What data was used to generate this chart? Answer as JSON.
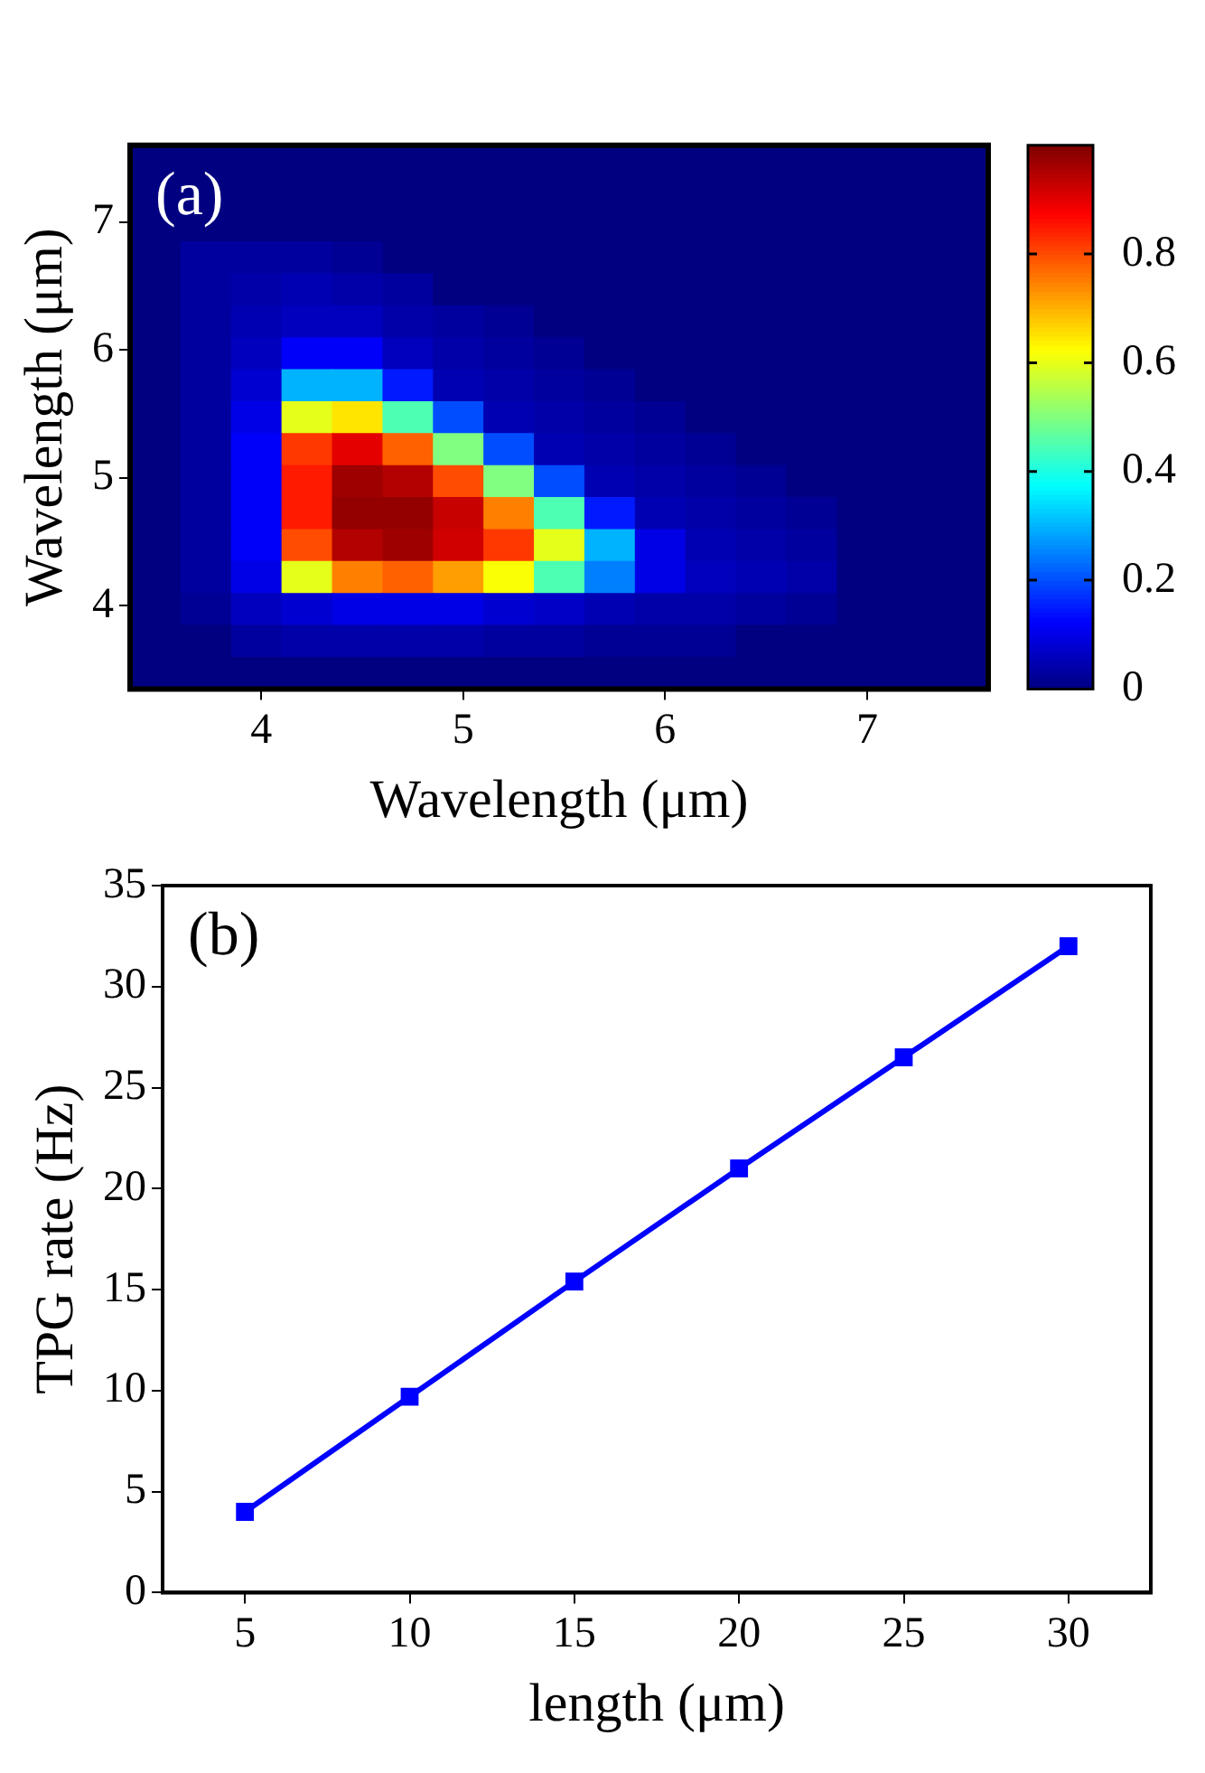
{
  "chart_data": [
    {
      "type": "heatmap",
      "xlabel": "Wavelength (μm)",
      "ylabel": "Wavelength (μm)",
      "annotations": [
        "(a)"
      ],
      "cells": [
        [
          0,
          0,
          0,
          0,
          0,
          0,
          0,
          0,
          0,
          0,
          0,
          0,
          0,
          0,
          0,
          0,
          0
        ],
        [
          0,
          0,
          0,
          0,
          0,
          0,
          0,
          0,
          0,
          0,
          0,
          0,
          0,
          0,
          0,
          0,
          0
        ],
        [
          0,
          0,
          0,
          0,
          0,
          0,
          0,
          0,
          0,
          0,
          0,
          0,
          0,
          0,
          0,
          0,
          0
        ],
        [
          0,
          0.03,
          0.03,
          0.03,
          0.02,
          0,
          0,
          0,
          0,
          0,
          0,
          0,
          0,
          0,
          0,
          0,
          0
        ],
        [
          0,
          0.03,
          0.04,
          0.05,
          0.04,
          0.03,
          0,
          0,
          0,
          0,
          0,
          0,
          0,
          0,
          0,
          0,
          0
        ],
        [
          0,
          0.03,
          0.05,
          0.06,
          0.06,
          0.04,
          0.03,
          0.02,
          0,
          0,
          0,
          0,
          0,
          0,
          0,
          0,
          0
        ],
        [
          0,
          0.03,
          0.06,
          0.12,
          0.12,
          0.06,
          0.04,
          0.03,
          0.02,
          0,
          0,
          0,
          0,
          0,
          0,
          0,
          0
        ],
        [
          0,
          0.03,
          0.08,
          0.3,
          0.3,
          0.15,
          0.05,
          0.04,
          0.03,
          0.02,
          0,
          0,
          0,
          0,
          0,
          0,
          0
        ],
        [
          0,
          0.03,
          0.1,
          0.6,
          0.65,
          0.45,
          0.2,
          0.05,
          0.04,
          0.03,
          0.02,
          0,
          0,
          0,
          0,
          0,
          0
        ],
        [
          0,
          0.03,
          0.12,
          0.82,
          0.9,
          0.78,
          0.5,
          0.2,
          0.05,
          0.04,
          0.03,
          0.02,
          0,
          0,
          0,
          0,
          0
        ],
        [
          0,
          0.03,
          0.12,
          0.85,
          0.97,
          0.95,
          0.8,
          0.5,
          0.2,
          0.05,
          0.04,
          0.03,
          0.02,
          0,
          0,
          0,
          0
        ],
        [
          0,
          0.03,
          0.12,
          0.85,
          0.98,
          0.98,
          0.93,
          0.75,
          0.45,
          0.15,
          0.05,
          0.04,
          0.03,
          0.02,
          0,
          0,
          0
        ],
        [
          0,
          0.03,
          0.12,
          0.8,
          0.95,
          0.97,
          0.92,
          0.82,
          0.6,
          0.3,
          0.1,
          0.05,
          0.04,
          0.03,
          0,
          0,
          0
        ],
        [
          0,
          0.03,
          0.1,
          0.6,
          0.75,
          0.78,
          0.72,
          0.62,
          0.45,
          0.25,
          0.1,
          0.06,
          0.05,
          0.04,
          0,
          0,
          0
        ],
        [
          0,
          0.02,
          0.06,
          0.08,
          0.1,
          0.1,
          0.1,
          0.08,
          0.07,
          0.05,
          0.04,
          0.04,
          0.03,
          0.02,
          0,
          0,
          0
        ],
        [
          0,
          0,
          0.03,
          0.04,
          0.04,
          0.04,
          0.04,
          0.03,
          0.03,
          0.02,
          0.02,
          0.02,
          0,
          0,
          0,
          0,
          0
        ],
        [
          0,
          0,
          0,
          0,
          0,
          0,
          0,
          0,
          0,
          0,
          0,
          0,
          0,
          0,
          0,
          0,
          0
        ]
      ],
      "xlim": [
        3.35,
        7.6
      ],
      "xticks": [
        4,
        5,
        6,
        7
      ],
      "ylim": [
        3.35,
        7.6
      ],
      "yticks": [
        4,
        5,
        6,
        7
      ],
      "clim": [
        0,
        1
      ],
      "cticks": [
        0,
        0.2,
        0.4,
        0.6,
        0.8
      ]
    },
    {
      "type": "line",
      "xlabel": "length (μm)",
      "ylabel": "TPG rate (Hz)",
      "annotations": [
        "(b)"
      ],
      "x": [
        5,
        10,
        15,
        20,
        25,
        30
      ],
      "series": [
        {
          "color": "#0000ff",
          "values": [
            4.0,
            9.7,
            15.4,
            21.0,
            26.5,
            32.0
          ]
        }
      ],
      "xlim": [
        2.5,
        32.5
      ],
      "xticks": [
        5,
        10,
        15,
        20,
        25,
        30
      ],
      "ylim": [
        0,
        35
      ],
      "yticks": [
        0,
        5,
        10,
        15,
        20,
        25,
        30,
        35
      ],
      "marker": "square"
    }
  ]
}
